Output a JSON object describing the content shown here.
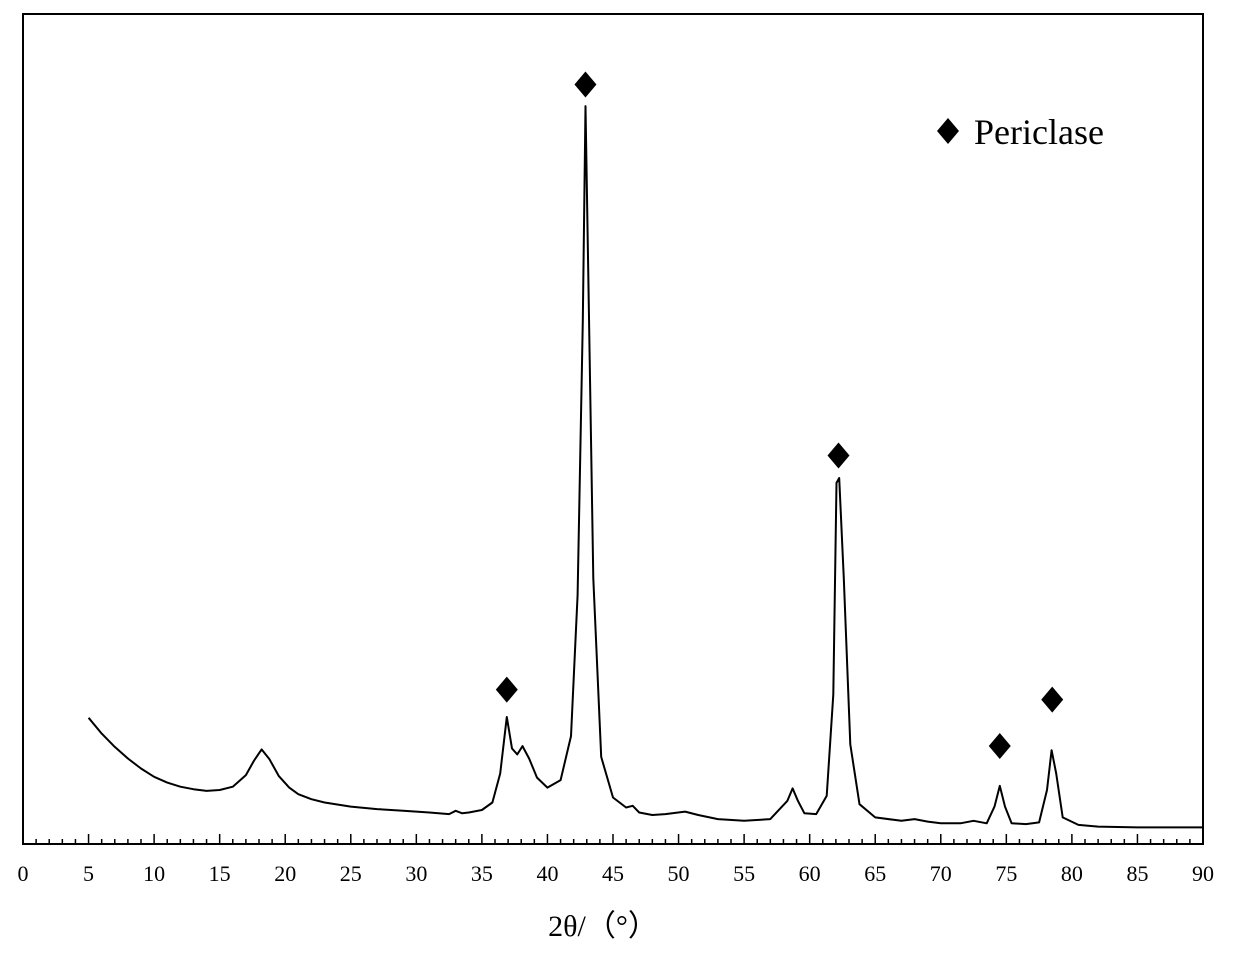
{
  "chart_data": {
    "type": "line",
    "title": "",
    "xlabel": "2θ/（°）",
    "ylabel": "",
    "xlim": [
      0,
      90
    ],
    "ylim": [
      0,
      100
    ],
    "x_ticks": [
      0,
      5,
      10,
      15,
      20,
      25,
      30,
      35,
      40,
      45,
      50,
      55,
      60,
      65,
      70,
      75,
      80,
      85,
      90
    ],
    "x_tick_labels": [
      "0",
      "5",
      "10",
      "15",
      "20",
      "25",
      "30",
      "35",
      "40",
      "45",
      "50",
      "55",
      "60",
      "65",
      "70",
      "75",
      "80",
      "85",
      "90"
    ],
    "y_ticks_shown": false,
    "grid": false,
    "legend": {
      "position": "top-right",
      "entries": [
        {
          "marker": "diamond",
          "label": "Periclase",
          "color": "#000000"
        }
      ]
    },
    "series": [
      {
        "x": [
          5,
          6,
          7,
          8,
          9,
          10,
          11,
          12,
          13,
          14,
          15,
          16,
          17,
          17.6,
          18.2,
          18.8,
          19.5,
          20.3,
          21,
          22,
          23,
          25,
          27,
          29,
          31,
          32.5,
          33,
          33.5,
          34,
          35,
          35.8,
          36.4,
          36.9,
          37.3,
          37.7,
          38.1,
          38.6,
          39.2,
          40,
          41,
          41.8,
          42.3,
          42.7,
          42.9,
          43.1,
          43.5,
          44.1,
          45,
          46,
          46.5,
          47,
          48,
          49,
          50.5,
          51.5,
          53,
          55,
          57,
          58.3,
          58.7,
          59.1,
          59.6,
          60.5,
          61.3,
          61.8,
          62.05,
          62.25,
          62.6,
          63.1,
          63.8,
          65,
          67,
          68,
          69,
          70,
          71.5,
          72.5,
          73.5,
          74.1,
          74.5,
          74.9,
          75.4,
          76.5,
          77.5,
          78.1,
          78.45,
          78.8,
          79.3,
          80.5,
          82,
          85,
          88,
          90
        ],
        "y": [
          15.2,
          13.3,
          11.7,
          10.3,
          9.1,
          8.1,
          7.4,
          6.9,
          6.6,
          6.4,
          6.5,
          6.9,
          8.3,
          10.0,
          11.4,
          10.2,
          8.2,
          6.8,
          6.0,
          5.4,
          5.0,
          4.5,
          4.2,
          4.0,
          3.8,
          3.6,
          4.0,
          3.7,
          3.8,
          4.1,
          5.0,
          8.5,
          15.3,
          11.5,
          10.8,
          11.8,
          10.3,
          8.0,
          6.8,
          7.7,
          13.0,
          30.0,
          63.0,
          88.9,
          70.0,
          32.0,
          10.5,
          5.6,
          4.4,
          4.6,
          3.8,
          3.5,
          3.6,
          3.9,
          3.5,
          3.0,
          2.8,
          3.0,
          5.2,
          6.7,
          5.2,
          3.7,
          3.6,
          5.8,
          18.0,
          43.5,
          44.1,
          32.0,
          12.0,
          4.8,
          3.2,
          2.8,
          3.0,
          2.7,
          2.5,
          2.5,
          2.8,
          2.5,
          4.5,
          7.0,
          4.5,
          2.5,
          2.4,
          2.6,
          6.5,
          11.3,
          8.5,
          3.2,
          2.3,
          2.1,
          2.0,
          2.0,
          2.0
        ]
      }
    ],
    "annotations": [
      {
        "marker": "diamond",
        "x": 36.9,
        "y": 18.6
      },
      {
        "marker": "diamond",
        "x": 42.9,
        "y": 91.5
      },
      {
        "marker": "diamond",
        "x": 62.2,
        "y": 46.8
      },
      {
        "marker": "diamond",
        "x": 74.5,
        "y": 11.8
      },
      {
        "marker": "diamond",
        "x": 78.5,
        "y": 17.4
      }
    ]
  }
}
